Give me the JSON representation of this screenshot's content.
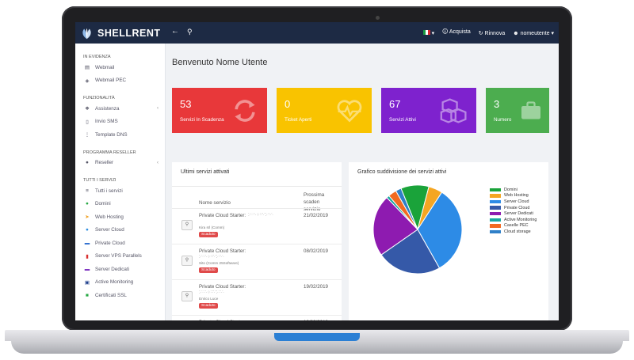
{
  "app": {
    "brand": "SHELLRENT"
  },
  "topbar": {
    "back_icon": "arrow-left-icon",
    "search_icon": "search-icon",
    "language_label": "▾",
    "acquista": "Acquista",
    "rinnova": "Rinnova",
    "user": "nomeutente ▾"
  },
  "sidebar": {
    "sections": [
      {
        "title": "IN EVIDENZA",
        "items": [
          {
            "label": "Webmail",
            "icon": "inbox-icon",
            "glyph": "▤"
          },
          {
            "label": "Webmail PEC",
            "icon": "shield-icon",
            "glyph": "◈"
          }
        ]
      },
      {
        "title": "FUNZIONALITÀ",
        "items": [
          {
            "label": "Assistenza",
            "icon": "handshake-icon",
            "glyph": "❖",
            "arrow": "‹"
          },
          {
            "label": "Invio SMS",
            "icon": "phone-icon",
            "glyph": "▯"
          },
          {
            "label": "Template DNS",
            "icon": "sliders-icon",
            "glyph": "⋮"
          }
        ]
      },
      {
        "title": "PROGRAMMA RESELLER",
        "items": [
          {
            "label": "Reseller",
            "icon": "users-icon",
            "glyph": "●",
            "arrow": "‹"
          }
        ]
      },
      {
        "title": "TUTTI I SERVIZI",
        "items": [
          {
            "label": "Tutti i servizi",
            "icon": "list-icon",
            "glyph": "≡"
          },
          {
            "label": "Domini",
            "icon": "globe-icon",
            "glyph": "●",
            "color": "#27a844"
          },
          {
            "label": "Web Hosting",
            "icon": "rocket-icon",
            "glyph": "➤",
            "color": "#f0a020"
          },
          {
            "label": "Server Cloud",
            "icon": "cloud-icon",
            "glyph": "●",
            "color": "#2e8ee0"
          },
          {
            "label": "Private Cloud",
            "icon": "cloud-icon",
            "glyph": "▬",
            "color": "#2e6fd0"
          },
          {
            "label": "Server VPS Parallels",
            "icon": "server-icon",
            "glyph": "▮",
            "color": "#d83030"
          },
          {
            "label": "Server Dedicati",
            "icon": "server-icon",
            "glyph": "▬",
            "color": "#7b2fbf"
          },
          {
            "label": "Active Monitoring",
            "icon": "tasks-icon",
            "glyph": "▣",
            "color": "#1e3e8c"
          },
          {
            "label": "Certificati SSL",
            "icon": "lock-icon",
            "glyph": "■",
            "color": "#27a844"
          }
        ]
      }
    ]
  },
  "main": {
    "welcome": "Benvenuto Nome Utente",
    "cards": [
      {
        "value": "53",
        "label": "Servizi In Scadenza",
        "color": "#e8383a",
        "icon": "refresh-icon"
      },
      {
        "value": "0",
        "label": "Ticket Aperti",
        "color": "#f9c300",
        "icon": "heartbeat-icon"
      },
      {
        "value": "67",
        "label": "Servizi Attivi",
        "color": "#7e22ce",
        "icon": "cubes-icon"
      },
      {
        "value": "3",
        "label": "Numero",
        "color": "#4cad4f",
        "icon": "briefcase-icon"
      }
    ],
    "recent": {
      "title": "Ultimi servizi attivati",
      "col_name": "Nome servizio",
      "col_date_1": "Prossima scaden",
      "col_date_2": "servizio",
      "rows": [
        {
          "service": "Private Cloud Starter:",
          "owner": "Kira srl (Comm)",
          "status": "Scaduto",
          "date": "21/02/2019"
        },
        {
          "service": "Private Cloud Starter:",
          "owner": "Sito (Comm 25Software)",
          "status": "Scaduto",
          "date": "08/02/2019"
        },
        {
          "service": "Private Cloud Starter:",
          "owner": "Enrico Luce",
          "status": "Scaduto",
          "date": "19/02/2019"
        },
        {
          "service": "Private Cloud Starter:",
          "owner": "COMmma - BSCO1",
          "status": "Scaduto",
          "date": "12/02/2019"
        }
      ]
    },
    "chart_title": "Grafico suddivisione dei servizi attivi"
  },
  "chart_data": {
    "type": "pie",
    "title": "Grafico suddivisione dei servizi attivi",
    "categories": [
      "Domini",
      "Web Hosting",
      "Server Cloud",
      "Private Cloud",
      "Server Dedicati",
      "Active Monitoring",
      "Caselle PEC",
      "Cloud storage"
    ],
    "values": [
      10,
      5,
      32,
      23,
      22,
      1,
      3,
      2
    ],
    "colors": [
      "#1aa33a",
      "#f5a623",
      "#2d8be6",
      "#3559a8",
      "#8e1bb0",
      "#17a6a0",
      "#f26a21",
      "#2f80c8"
    ],
    "legend_position": "right"
  }
}
